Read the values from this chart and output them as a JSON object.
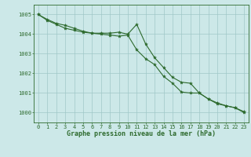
{
  "line1": {
    "x": [
      0,
      1,
      2,
      3,
      4,
      5,
      6,
      7,
      8,
      9,
      10,
      11,
      12,
      13,
      14,
      15,
      16,
      17,
      18,
      19,
      20,
      21,
      22,
      23
    ],
    "y": [
      1005.0,
      1004.7,
      1004.5,
      1004.3,
      1004.2,
      1004.1,
      1004.05,
      1004.05,
      1004.05,
      1004.1,
      1004.0,
      1004.5,
      1003.5,
      1002.8,
      1002.3,
      1001.8,
      1001.55,
      1001.5,
      1001.0,
      1000.7,
      1000.5,
      1000.35,
      1000.25,
      1000.0
    ]
  },
  "line2": {
    "x": [
      0,
      1,
      2,
      3,
      4,
      5,
      6,
      7,
      8,
      9,
      10,
      11,
      12,
      13,
      14,
      15,
      16,
      17,
      18,
      19,
      20,
      21,
      22,
      23
    ],
    "y": [
      1005.0,
      1004.75,
      1004.55,
      1004.45,
      1004.3,
      1004.15,
      1004.05,
      1004.0,
      1003.95,
      1003.9,
      1003.95,
      1003.2,
      1002.75,
      1002.45,
      1001.85,
      1001.5,
      1001.05,
      1001.0,
      1001.0,
      1000.7,
      1000.45,
      1000.35,
      1000.25,
      1000.05
    ]
  },
  "ylim": [
    999.5,
    1005.5
  ],
  "xlim": [
    -0.5,
    23.5
  ],
  "yticks": [
    1000,
    1001,
    1002,
    1003,
    1004,
    1005
  ],
  "xticks": [
    0,
    1,
    2,
    3,
    4,
    5,
    6,
    7,
    8,
    9,
    10,
    11,
    12,
    13,
    14,
    15,
    16,
    17,
    18,
    19,
    20,
    21,
    22,
    23
  ],
  "xlabel": "Graphe pression niveau de la mer (hPa)",
  "line_color": "#2d6a2d",
  "bg_color": "#cce8e8",
  "grid_color": "#a0c8c8",
  "marker": "*",
  "markersize": 3.0,
  "linewidth": 0.8,
  "tick_fontsize": 5.0,
  "xlabel_fontsize": 6.0
}
